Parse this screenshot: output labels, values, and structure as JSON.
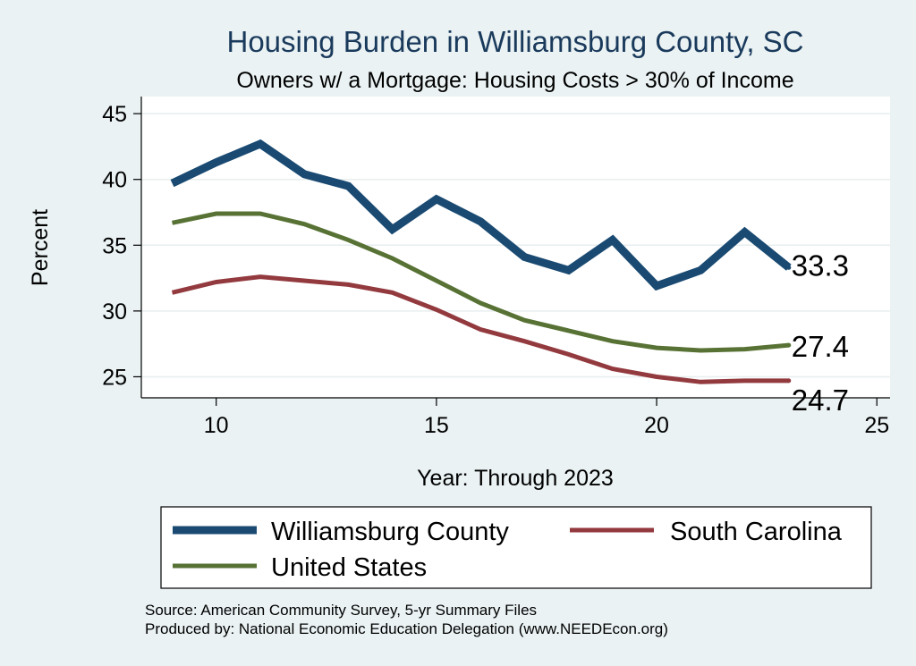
{
  "chart_data": {
    "type": "line",
    "title": "Housing Burden in Williamsburg County, SC",
    "subtitle": "Owners w/ a Mortgage: Housing Costs > 30% of Income",
    "xlabel": "Year: Through 2023",
    "ylabel": "Percent",
    "xlim": [
      8.3,
      25.3
    ],
    "ylim": [
      23.4,
      46.3
    ],
    "xticks": [
      10,
      15,
      20,
      25
    ],
    "yticks": [
      25,
      30,
      35,
      40,
      45
    ],
    "grid": true,
    "x": [
      9,
      10,
      11,
      12,
      13,
      14,
      15,
      16,
      17,
      18,
      19,
      20,
      21,
      22,
      23
    ],
    "series": [
      {
        "name": "Williamsburg County",
        "color": "#1a4a72",
        "values": [
          39.7,
          41.3,
          42.7,
          40.4,
          39.5,
          36.2,
          38.5,
          36.8,
          34.1,
          33.1,
          35.4,
          31.9,
          33.1,
          36.0,
          33.3
        ],
        "end_label": "33.3"
      },
      {
        "name": "South Carolina",
        "color": "#933a3f",
        "values": [
          31.4,
          32.2,
          32.6,
          32.3,
          32.0,
          31.4,
          30.1,
          28.6,
          27.7,
          26.7,
          25.6,
          25.0,
          24.6,
          24.7,
          24.7
        ],
        "end_label": "24.7"
      },
      {
        "name": "United States",
        "color": "#577234",
        "values": [
          36.7,
          37.4,
          37.4,
          36.6,
          35.4,
          34.0,
          32.3,
          30.6,
          29.3,
          28.5,
          27.7,
          27.2,
          27.0,
          27.1,
          27.4
        ],
        "end_label": "27.4"
      }
    ],
    "legend": {
      "placement": "bottom",
      "entries": [
        "Williamsburg County",
        "South Carolina",
        "United States"
      ]
    },
    "notes": [
      "Source: American Community Survey, 5-yr Summary Files",
      "Produced by: National Economic Education Delegation (www.NEEDEcon.org)"
    ]
  }
}
